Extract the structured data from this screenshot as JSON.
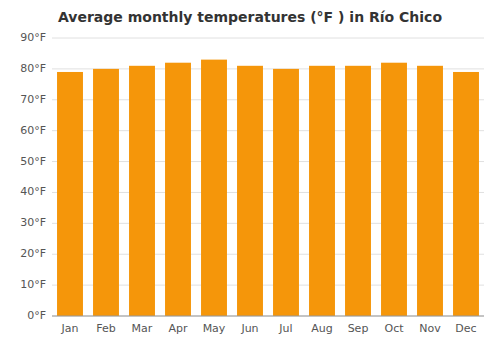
{
  "chart_data": {
    "type": "bar",
    "title": "Average monthly temperatures (°F ) in Río Chico",
    "categories": [
      "Jan",
      "Feb",
      "Mar",
      "Apr",
      "May",
      "Jun",
      "Jul",
      "Aug",
      "Sep",
      "Oct",
      "Nov",
      "Dec"
    ],
    "values": [
      79,
      80,
      81,
      82,
      83,
      81,
      80,
      81,
      81,
      82,
      81,
      79
    ],
    "color": "#F5960A",
    "ylim": [
      0,
      90
    ],
    "yticks": [
      {
        "value": 0,
        "label": "0°F"
      },
      {
        "value": 10,
        "label": "10°F"
      },
      {
        "value": 20,
        "label": "20°F"
      },
      {
        "value": 30,
        "label": "30°F"
      },
      {
        "value": 40,
        "label": "40°F"
      },
      {
        "value": 50,
        "label": "50°F"
      },
      {
        "value": 60,
        "label": "60°F"
      },
      {
        "value": 70,
        "label": "70°F"
      },
      {
        "value": 80,
        "label": "80°F"
      },
      {
        "value": 90,
        "label": "90°F"
      }
    ],
    "grid": true
  }
}
